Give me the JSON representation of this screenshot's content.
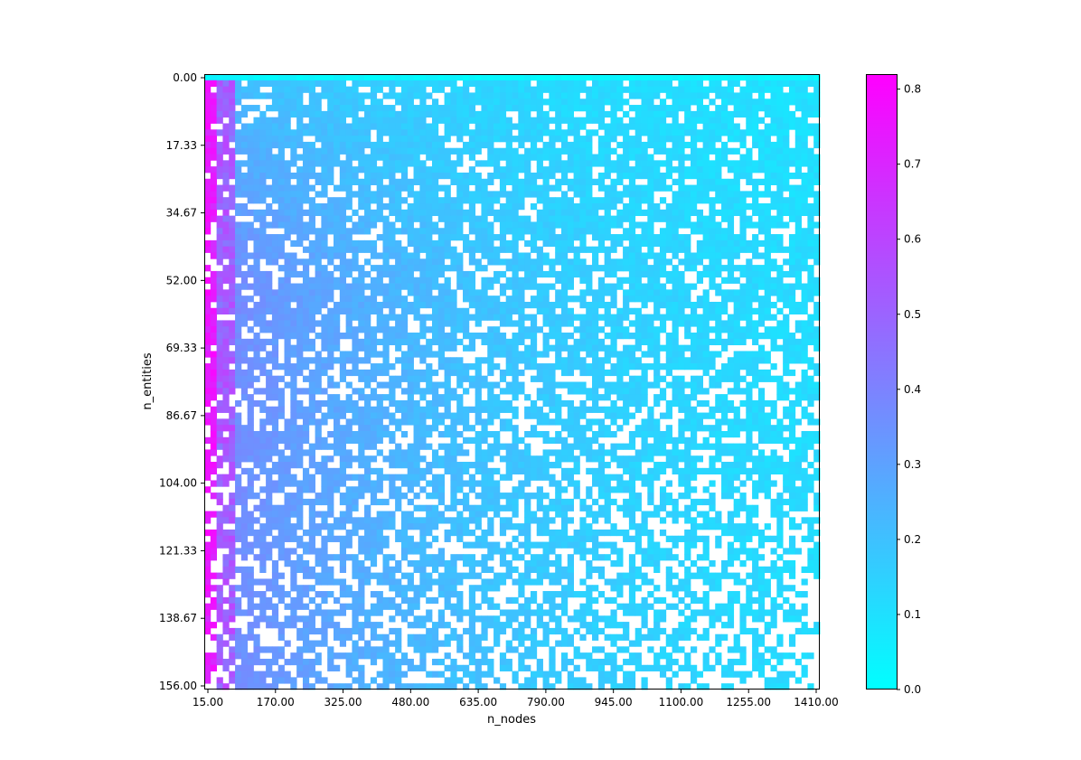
{
  "chart_data": {
    "type": "heatmap",
    "title": "",
    "xlabel": "n_nodes",
    "ylabel": "n_entities",
    "xlim": [
      15,
      1410
    ],
    "ylim": [
      156,
      0
    ],
    "x_ticks": [
      "15.00",
      "170.00",
      "325.00",
      "480.00",
      "635.00",
      "790.00",
      "945.00",
      "1100.00",
      "1255.00",
      "1410.00"
    ],
    "y_ticks": [
      "0.00",
      "17.33",
      "34.67",
      "52.00",
      "69.33",
      "86.67",
      "104.00",
      "121.33",
      "138.67",
      "156.00"
    ],
    "grid_size": [
      100,
      100
    ],
    "colormap": "cool",
    "colormap_colors": [
      "#00ffff",
      "#ff00ff"
    ],
    "colorbar": {
      "range": [
        0.0,
        0.82
      ],
      "ticks": [
        "0.0",
        "0.1",
        "0.2",
        "0.3",
        "0.4",
        "0.5",
        "0.6",
        "0.7",
        "0.8"
      ]
    },
    "value_model": {
      "description": "approximate reading of cell colour",
      "left_edge_value": 0.8,
      "top_row_value": 0.02,
      "right_column_value": 0.08,
      "missing_cells": "white (no data), more frequent toward bottom-right"
    }
  }
}
